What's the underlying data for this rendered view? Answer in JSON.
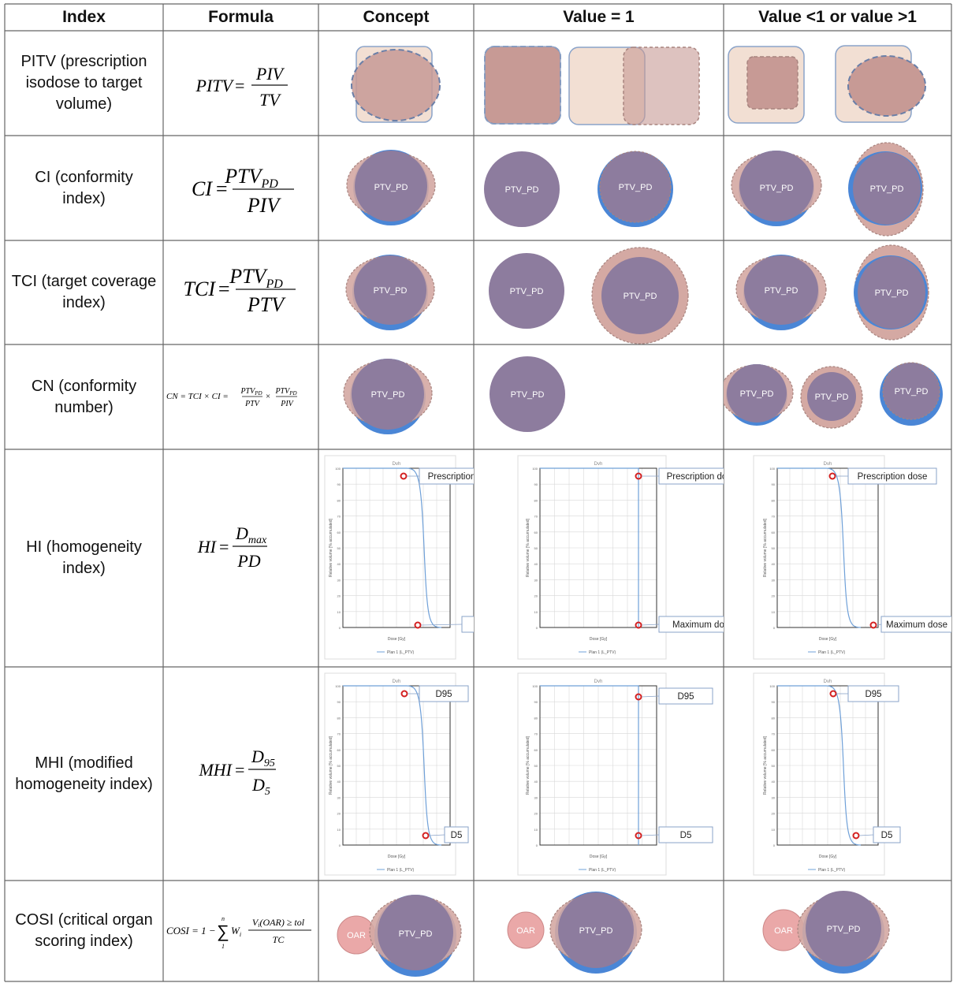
{
  "headers": [
    "Index",
    "Formula",
    "Concept",
    "Value = 1",
    "Value <1 or value >1"
  ],
  "rows": [
    {
      "id": "pitv",
      "label": "PITV (prescription\nisodose to target\nvolume)"
    },
    {
      "id": "ci",
      "label": "CI (conformity\nindex)"
    },
    {
      "id": "tci",
      "label": "TCI (target coverage\nindex)"
    },
    {
      "id": "cn",
      "label": "CN (conformity\nnumber)"
    },
    {
      "id": "hi",
      "label": "HI (homogeneity\nindex)"
    },
    {
      "id": "mhi",
      "label": "MHI (modified\nhomogeneity index)"
    },
    {
      "id": "cosi",
      "label": "COSI (critical organ\nscoring index)"
    }
  ],
  "formulas": {
    "pitv": {
      "lhs": "PITV",
      "num": "PIV",
      "den": "TV"
    },
    "ci": {
      "lhs": "CI",
      "num": "PTV",
      "num_sub": "PD",
      "den": "PIV"
    },
    "tci": {
      "lhs": "TCI",
      "num": "PTV",
      "num_sub": "PD",
      "den": "PTV"
    },
    "cn": {
      "lhs": "CN",
      "mid": "TCI × CI =",
      "n1": "PTV",
      "n1_sub": "PD",
      "d1": "PTV",
      "times": "×",
      "n2": "PTV",
      "n2_sub": "PD",
      "d2": "PIV"
    },
    "hi": {
      "lhs": "HI",
      "num": "D",
      "num_sub": "max",
      "den": "PD"
    },
    "mhi": {
      "lhs": "MHI",
      "num": "D",
      "num_sub": "95",
      "den": "D",
      "den_sub": "5"
    },
    "cosi": {
      "lhs": "COSI",
      "rhs": "1 −",
      "sum_top": "n",
      "sum_bot": "1",
      "w": "W",
      "w_sub": "i",
      "num": "V",
      "num_sub": "i",
      "num_rest": "(OAR) ≥ tol",
      "den": "TC"
    }
  },
  "shape_label": "PTV_PD",
  "oar_label": "OAR",
  "dvh": {
    "title": "Dvh",
    "ylabel": "Relative volume [% accumulated]",
    "xlabel": "Dose [Gy]",
    "legend": "Plan 1 (L_PTV)",
    "yticks": [
      "100",
      "90",
      "80",
      "70",
      "60",
      "50",
      "40",
      "30",
      "20",
      "10",
      "0"
    ],
    "hi_labels": {
      "top": "Prescription dose",
      "bottom": "Maximum dose"
    },
    "mhi_labels": {
      "top": "D95",
      "bottom": "D5"
    }
  },
  "colors": {
    "purple": "#8d7c9e",
    "blue": "#4a86d6",
    "pink": "#d4a9a3",
    "pinkDash": "#a8847f",
    "boxFill": "#f2dfd3",
    "boxStroke": "#8aa3c9",
    "oar": "#eaa8a8",
    "curve": "#6fa0d8",
    "marker": "#d42020"
  }
}
